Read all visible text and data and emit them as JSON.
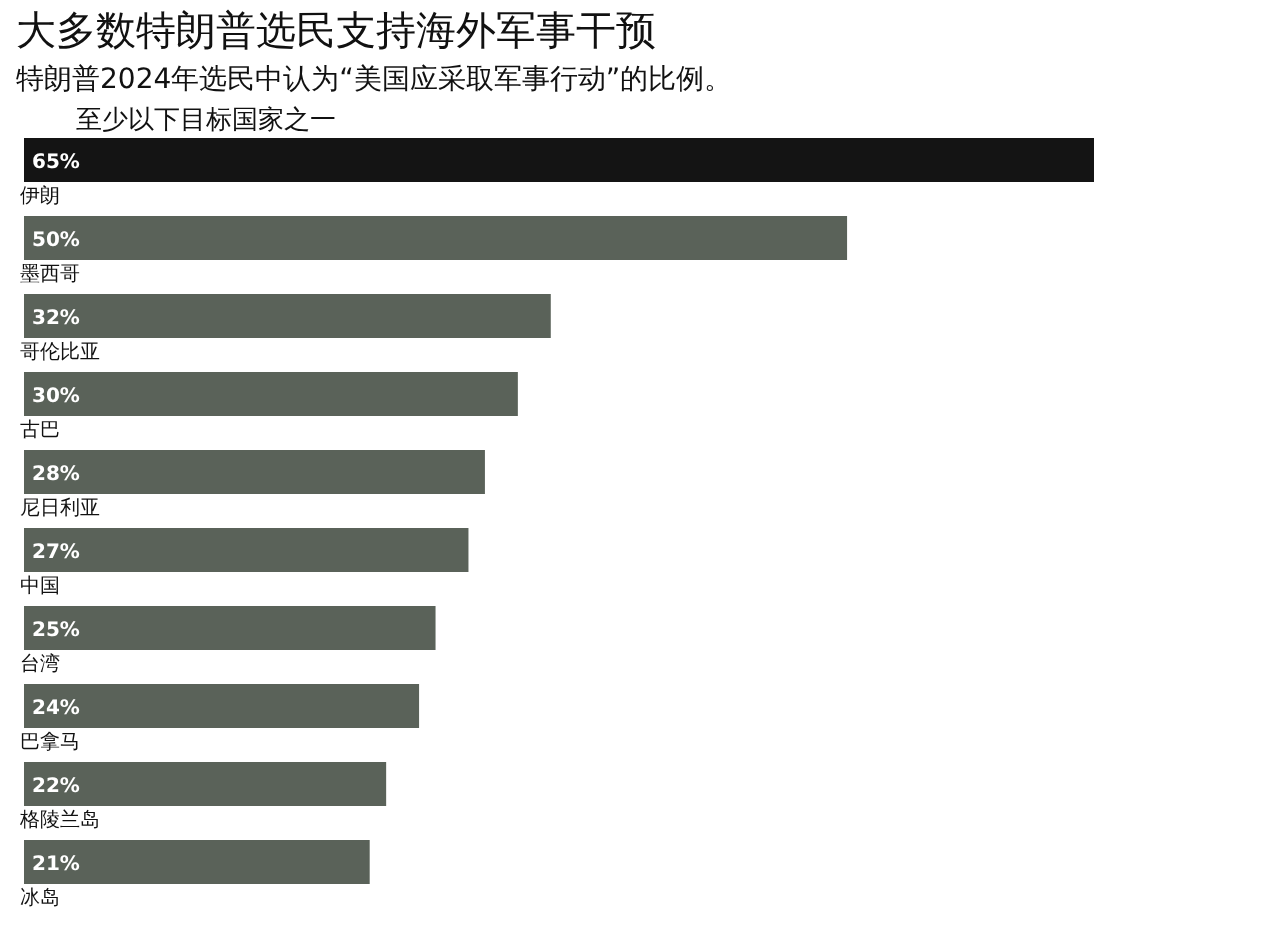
{
  "chart_data": {
    "type": "bar",
    "orientation": "horizontal",
    "title": "大多数特朗普选民支持海外军事干预",
    "subtitle": "特朗普2024年选民中认为“美国应采取军事行动”的比例。",
    "annotations": [
      "至少以下目标国家之一"
    ],
    "categories": [
      "伊朗",
      "墨西哥",
      "哥伦比亚",
      "古巴",
      "尼日利亚",
      "中国",
      "台湾",
      "巴拿马",
      "格陵兰岛",
      "冰岛"
    ],
    "values": [
      65,
      50,
      32,
      30,
      28,
      27,
      25,
      24,
      22,
      21
    ],
    "value_labels": [
      "65%",
      "50%",
      "32%",
      "30%",
      "28%",
      "27%",
      "25%",
      "24%",
      "22%",
      "21%"
    ],
    "colors": [
      "#141414",
      "#5a6259",
      "#5a6259",
      "#5a6259",
      "#5a6259",
      "#5a6259",
      "#5a6259",
      "#5a6259",
      "#5a6259",
      "#5a6259"
    ]
  }
}
